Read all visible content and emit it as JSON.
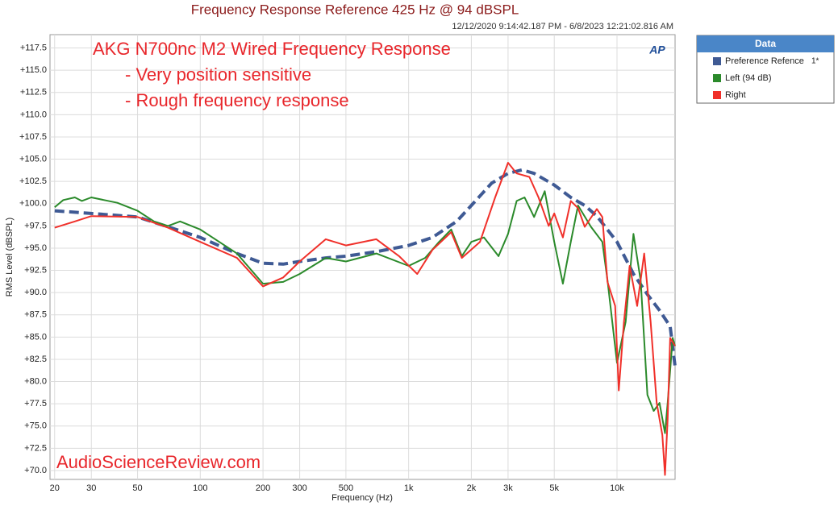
{
  "chart_data": {
    "type": "line",
    "title": "Frequency Response Reference 425 Hz @ 94 dBSPL",
    "subtitle": "12/12/2020 9:14:42.187 PM - 6/8/2023 12:21:02.816 AM",
    "x_label": "Frequency (Hz)",
    "y_label": "RMS Level (dBSPL)",
    "annotations": [
      "AKG N700nc M2 Wired Frequency Response",
      "- Very position sensitive",
      "- Rough frequency response",
      "AudioScienceReview.com"
    ],
    "annotation_color": "#e8262b",
    "logo": "AP",
    "legend_title": "Data",
    "legend_note": "1*",
    "legend_position": "right",
    "x_log": true,
    "grid": true,
    "xlim": [
      19,
      19000
    ],
    "ylim": [
      69,
      119
    ],
    "xticks": [
      20,
      30,
      50,
      100,
      200,
      300,
      500,
      {
        "value": 1000,
        "label": "1k"
      },
      {
        "value": 2000,
        "label": "2k"
      },
      {
        "value": 3000,
        "label": "3k"
      },
      {
        "value": 5000,
        "label": "5k"
      },
      {
        "value": 10000,
        "label": "10k"
      }
    ],
    "yticks": [
      {
        "value": 70,
        "label": "+70.0"
      },
      {
        "value": 72.5,
        "label": "+72.5"
      },
      {
        "value": 75,
        "label": "+75.0"
      },
      {
        "value": 77.5,
        "label": "+77.5"
      },
      {
        "value": 80,
        "label": "+80.0"
      },
      {
        "value": 82.5,
        "label": "+82.5"
      },
      {
        "value": 85,
        "label": "+85.0"
      },
      {
        "value": 87.5,
        "label": "+87.5"
      },
      {
        "value": 90,
        "label": "+90.0"
      },
      {
        "value": 92.5,
        "label": "+92.5"
      },
      {
        "value": 95,
        "label": "+95.0"
      },
      {
        "value": 97.5,
        "label": "+97.5"
      },
      {
        "value": 100,
        "label": "+100.0"
      },
      {
        "value": 102.5,
        "label": "+102.5"
      },
      {
        "value": 105,
        "label": "+105.0"
      },
      {
        "value": 107.5,
        "label": "+107.5"
      },
      {
        "value": 110,
        "label": "+110.0"
      },
      {
        "value": 112.5,
        "label": "+112.5"
      },
      {
        "value": 115,
        "label": "+115.0"
      },
      {
        "value": 117.5,
        "label": "+117.5"
      }
    ],
    "series": [
      {
        "name": "Preference Refence",
        "color": "#3f5a94",
        "dashed": true,
        "x": [
          20,
          30,
          50,
          70,
          100,
          150,
          200,
          250,
          300,
          400,
          500,
          700,
          1000,
          1300,
          1700,
          2000,
          2500,
          3000,
          3500,
          4000,
          5000,
          6000,
          7000,
          8000,
          10000,
          12000,
          14000,
          16000,
          18000,
          19000
        ],
        "values": [
          99.2,
          98.9,
          98.5,
          97.4,
          96.2,
          94.4,
          93.3,
          93.2,
          93.5,
          93.9,
          94.1,
          94.6,
          95.3,
          96.2,
          98.0,
          99.8,
          102.3,
          103.4,
          103.8,
          103.4,
          102.1,
          100.7,
          99.8,
          98.6,
          95.7,
          92.1,
          89.8,
          88.0,
          86.2,
          81.7
        ]
      },
      {
        "name": "Left (94 dB)",
        "color": "#2b8a2b",
        "dashed": false,
        "x": [
          20,
          22,
          25,
          27,
          30,
          40,
          50,
          60,
          70,
          80,
          100,
          150,
          200,
          250,
          300,
          400,
          500,
          700,
          1000,
          1200,
          1400,
          1600,
          1800,
          2000,
          2300,
          2700,
          3000,
          3300,
          3600,
          4000,
          4500,
          5000,
          5500,
          6000,
          6500,
          7500,
          8500,
          9000,
          10000,
          11000,
          12000,
          13000,
          14000,
          15000,
          16000,
          17000,
          17500,
          18500,
          19000
        ],
        "values": [
          99.6,
          100.4,
          100.7,
          100.3,
          100.7,
          100.1,
          99.2,
          98.0,
          97.5,
          98.0,
          97.1,
          94.4,
          91.0,
          91.2,
          92.1,
          93.9,
          93.5,
          94.4,
          93.0,
          93.9,
          95.7,
          97.1,
          94.1,
          95.7,
          96.2,
          94.1,
          96.6,
          100.3,
          100.7,
          98.5,
          101.4,
          95.7,
          91.0,
          95.7,
          99.8,
          97.4,
          95.7,
          91.4,
          82.1,
          86.7,
          96.6,
          91.3,
          78.5,
          76.7,
          77.6,
          74.2,
          77.6,
          84.9,
          84.0
        ]
      },
      {
        "name": "Right",
        "color": "#f0302a",
        "dashed": false,
        "x": [
          20,
          25,
          30,
          50,
          70,
          100,
          150,
          200,
          250,
          300,
          400,
          500,
          700,
          900,
          1100,
          1300,
          1600,
          1800,
          2200,
          2600,
          3000,
          3300,
          3800,
          4200,
          4700,
          5000,
          5500,
          6000,
          6500,
          7000,
          8000,
          8500,
          9000,
          9800,
          10200,
          10800,
          11500,
          12500,
          13500,
          14500,
          15500,
          16500,
          17000,
          17500,
          18000,
          19000
        ],
        "values": [
          97.3,
          98.0,
          98.6,
          98.5,
          97.3,
          95.7,
          93.9,
          90.7,
          91.7,
          93.5,
          96.0,
          95.3,
          96.0,
          94.1,
          92.1,
          94.8,
          96.8,
          93.9,
          95.7,
          100.7,
          104.6,
          103.4,
          103.0,
          100.7,
          97.5,
          98.9,
          96.2,
          100.3,
          99.5,
          97.4,
          99.4,
          98.5,
          91.2,
          88.5,
          79.0,
          86.7,
          93.0,
          88.5,
          94.4,
          86.7,
          77.6,
          74.0,
          69.5,
          75.8,
          84.9,
          84.0
        ]
      }
    ]
  }
}
